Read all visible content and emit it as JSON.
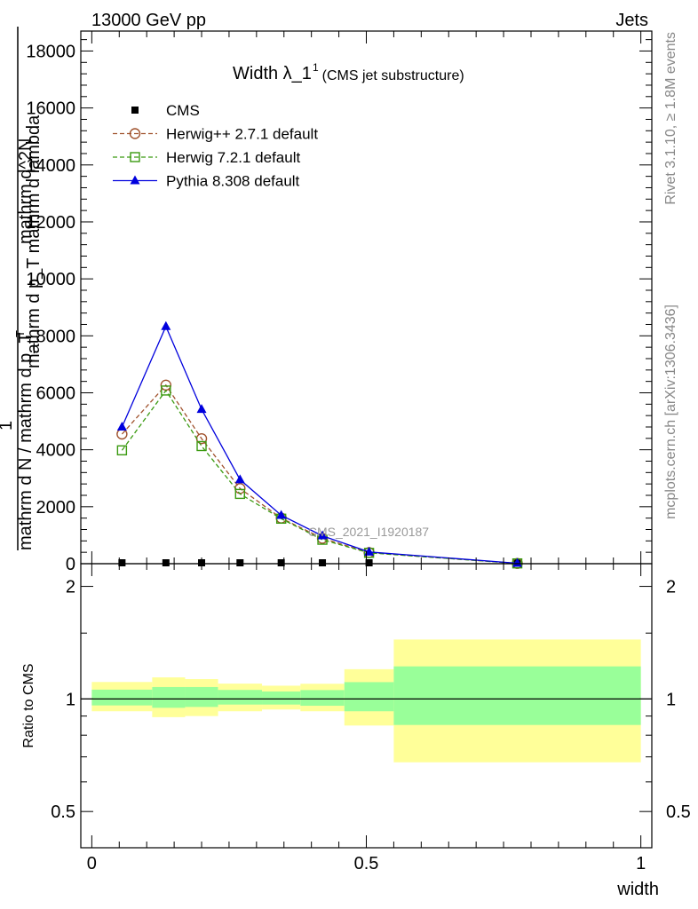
{
  "header": {
    "left": "13000 GeV pp",
    "right": "Jets"
  },
  "side_labels": {
    "rivet": "Rivet 3.1.10, ≥ 1.8M events",
    "mcplots": "mcplots.cern.ch [arXiv:1306.3436]"
  },
  "watermark": "CMS_2021_I1920187",
  "title": {
    "main": "Width λ_1",
    "superscript": "1",
    "sub": "(CMS jet substructure)"
  },
  "y_axis_label": {
    "numerator": "1",
    "denominator": "mathrm d N / mathrm d p_T",
    "upper_line1": "mathrm d^2N",
    "upper_line2": "mathrm d p_T mathrm d lambda",
    "subscript_T": "T"
  },
  "ratio_y_label": "Ratio to CMS",
  "x_label": "width",
  "legend": [
    {
      "name": "CMS",
      "color": "#000000",
      "marker": "square-filled",
      "line": "none"
    },
    {
      "name": "Herwig++ 2.7.1 default",
      "color": "#a0522d",
      "marker": "circle-open",
      "line": "dashed"
    },
    {
      "name": "Herwig 7.2.1 default",
      "color": "#3a9a10",
      "marker": "square-open",
      "line": "dashed"
    },
    {
      "name": "Pythia 8.308 default",
      "color": "#0000dd",
      "marker": "triangle-filled",
      "line": "solid"
    }
  ],
  "chart_data": {
    "type": "line",
    "main": {
      "xlim": [
        -0.02,
        1.02
      ],
      "ylim": [
        0,
        18700
      ],
      "y_ticks": [
        0,
        2000,
        4000,
        6000,
        8000,
        10000,
        12000,
        14000,
        16000,
        18000
      ],
      "y_tick_labels": [
        "0",
        "2000",
        "4000",
        "6000",
        "8000",
        "10000",
        "12000",
        "14000",
        "16000",
        "18000"
      ],
      "x": [
        0.055,
        0.135,
        0.2,
        0.27,
        0.345,
        0.42,
        0.505,
        0.775
      ],
      "series": [
        {
          "name": "CMS",
          "values": [
            0,
            0,
            0,
            0,
            0,
            0,
            0,
            0
          ]
        },
        {
          "name": "Herwig++ 2.7.1 default",
          "values": [
            4550,
            6270,
            4390,
            2640,
            1600,
            890,
            390,
            10
          ]
        },
        {
          "name": "Herwig 7.2.1 default",
          "values": [
            3980,
            6080,
            4130,
            2450,
            1580,
            840,
            380,
            10
          ]
        },
        {
          "name": "Pythia 8.308 default",
          "values": [
            4800,
            8330,
            5420,
            2950,
            1700,
            980,
            410,
            15
          ]
        }
      ]
    },
    "ratio": {
      "ylim": [
        0.4,
        2.3
      ],
      "log_scale": true,
      "y_ticks": [
        0.5,
        1,
        2
      ],
      "y_tick_labels": [
        "0.5",
        "1",
        "2"
      ],
      "x_ticks": [
        0,
        0.5,
        1
      ],
      "x_tick_labels": [
        "0",
        "0.5",
        "1"
      ],
      "bins": [
        {
          "x0": 0.0,
          "x1": 0.11,
          "inner": [
            0.961,
            1.059
          ],
          "outer": [
            0.927,
            1.11
          ]
        },
        {
          "x0": 0.11,
          "x1": 0.17,
          "inner": [
            0.947,
            1.076
          ],
          "outer": [
            0.894,
            1.142
          ]
        },
        {
          "x0": 0.17,
          "x1": 0.23,
          "inner": [
            0.952,
            1.076
          ],
          "outer": [
            0.9,
            1.13
          ]
        },
        {
          "x0": 0.23,
          "x1": 0.31,
          "inner": [
            0.966,
            1.057
          ],
          "outer": [
            0.927,
            1.099
          ]
        },
        {
          "x0": 0.31,
          "x1": 0.38,
          "inner": [
            0.966,
            1.047
          ],
          "outer": [
            0.937,
            1.085
          ]
        },
        {
          "x0": 0.38,
          "x1": 0.46,
          "inner": [
            0.959,
            1.056
          ],
          "outer": [
            0.927,
            1.098
          ]
        },
        {
          "x0": 0.46,
          "x1": 0.55,
          "inner": [
            0.927,
            1.109
          ],
          "outer": [
            0.849,
            1.201
          ]
        },
        {
          "x0": 0.55,
          "x1": 1.0,
          "inner": [
            0.852,
            1.222
          ],
          "outer": [
            0.677,
            1.442
          ]
        }
      ],
      "reference": 1
    },
    "colors": {
      "inner_band": "#99ff99",
      "outer_band": "#ffff99"
    }
  }
}
